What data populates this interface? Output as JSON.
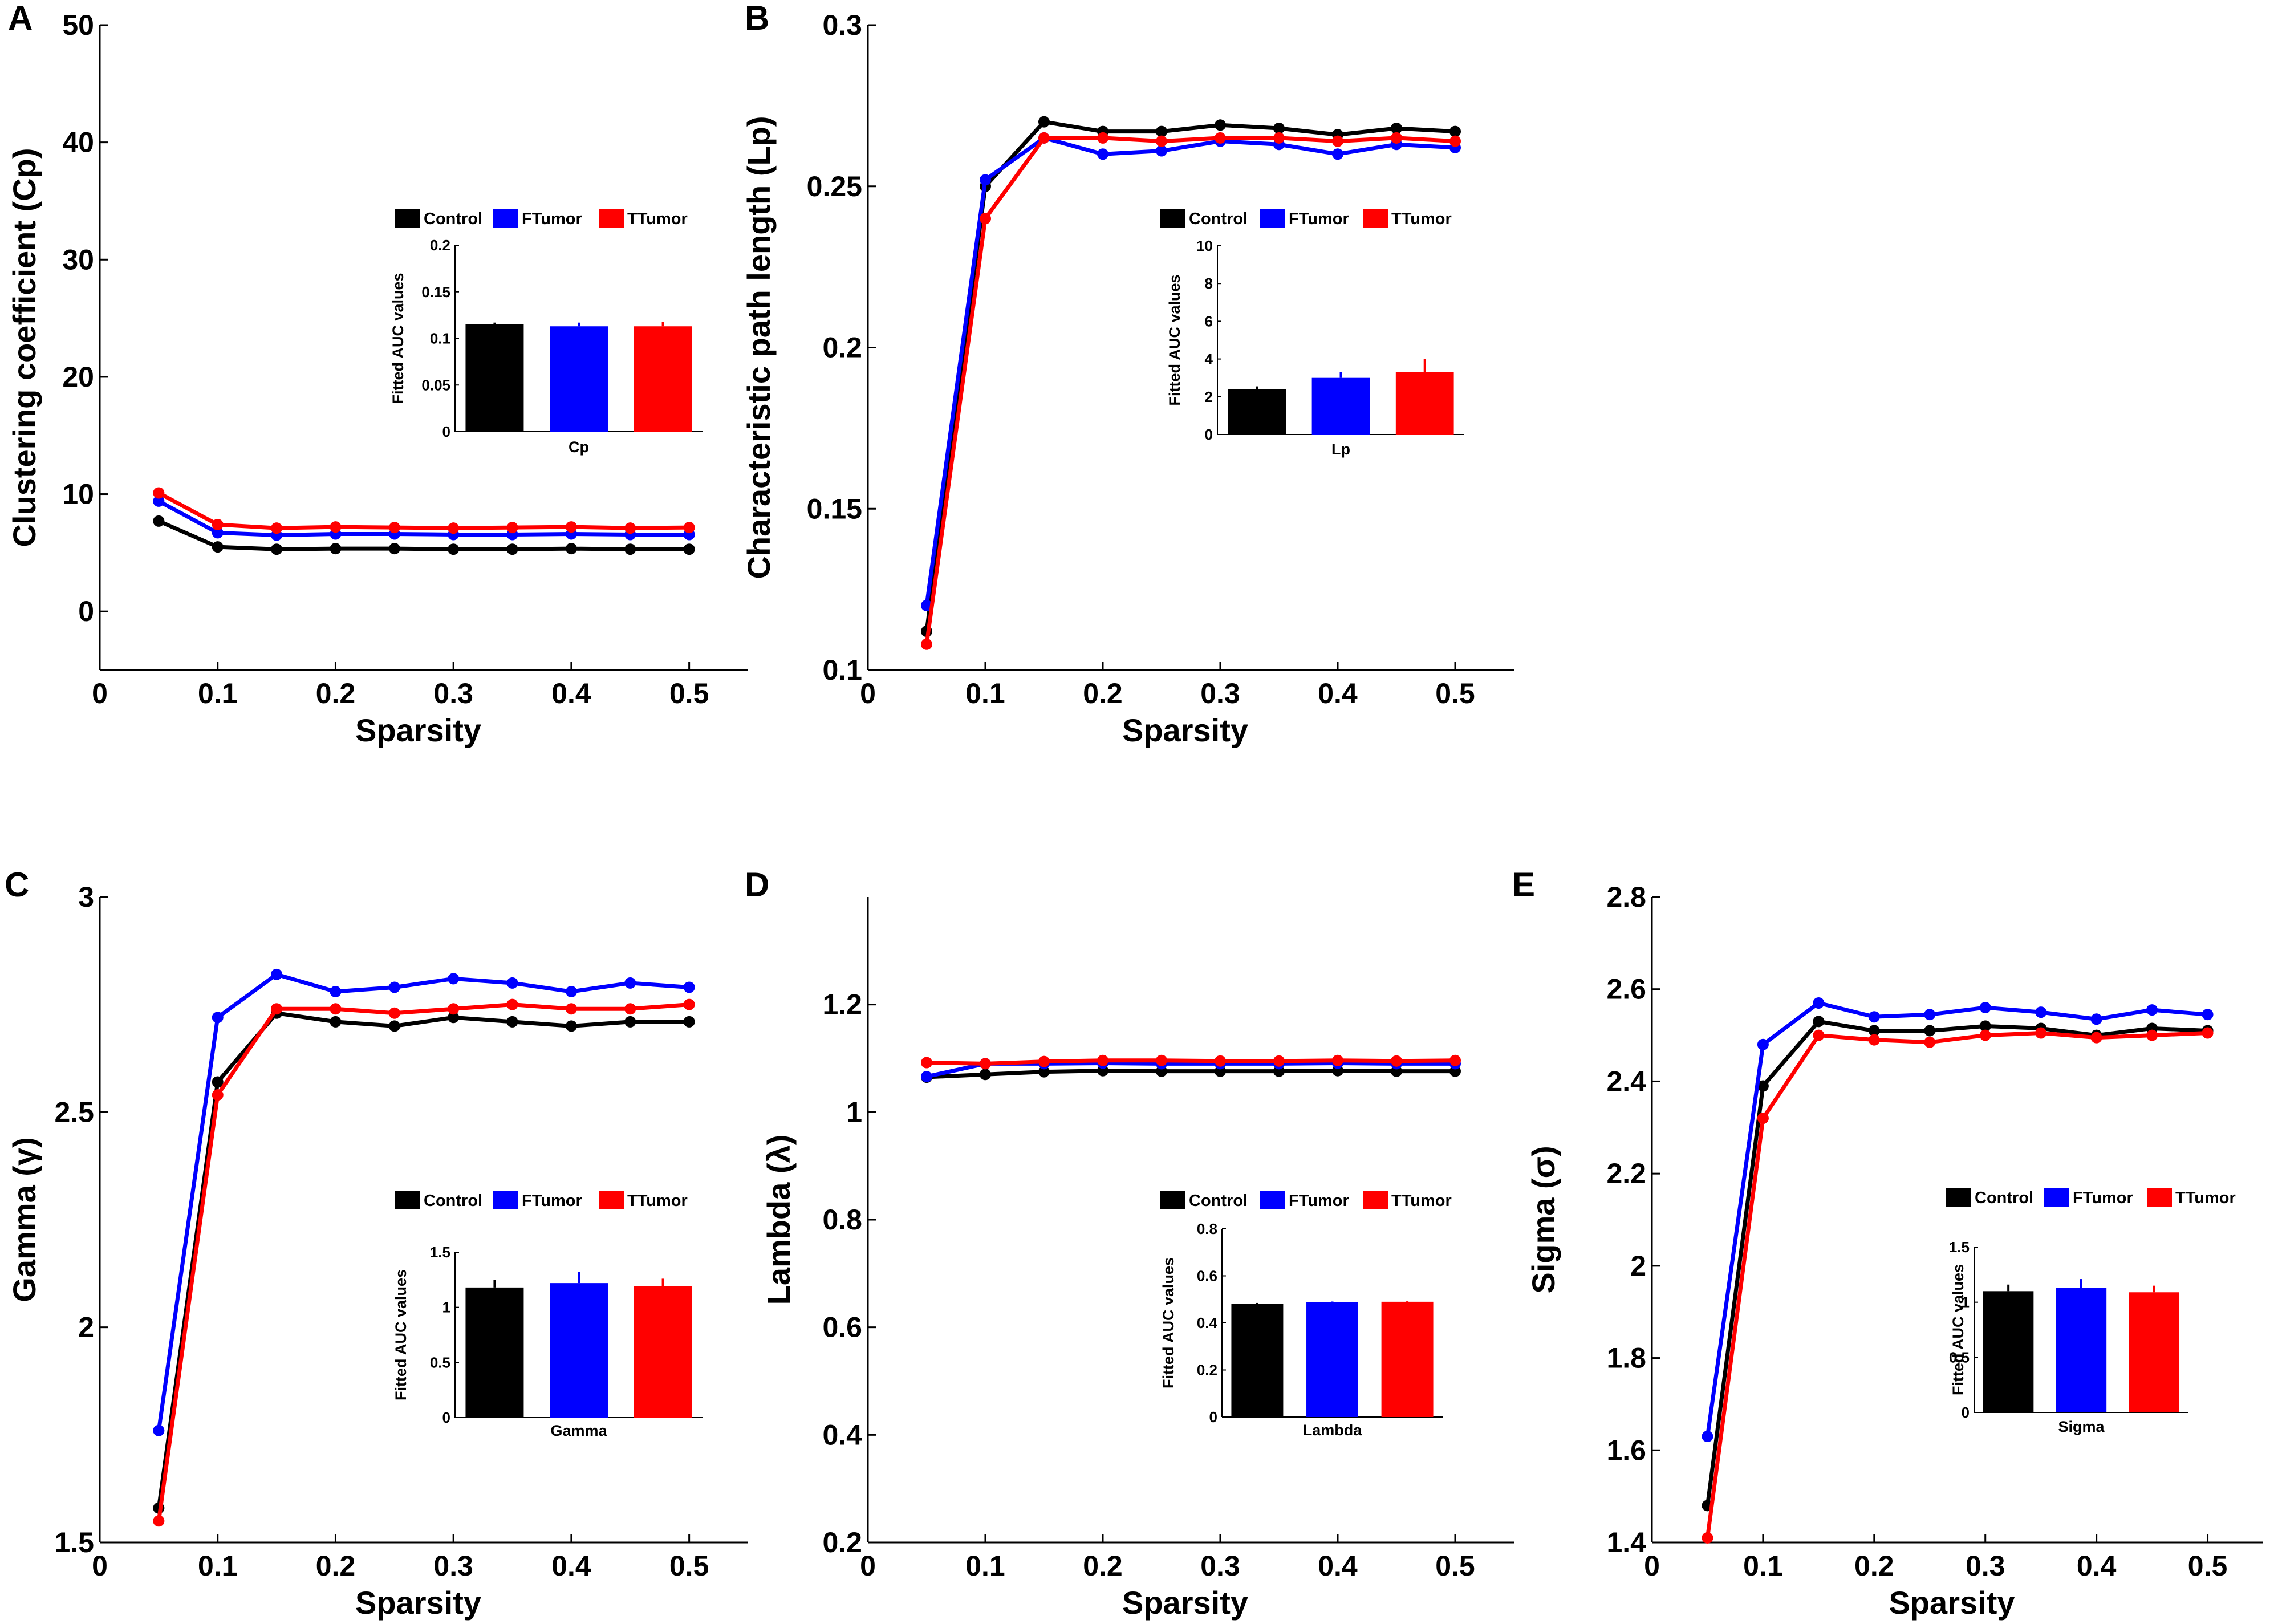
{
  "figure": {
    "description_title": ""
  },
  "colors": {
    "Control": "#000000",
    "FTumor": "#0000ff",
    "TTumor": "#ff0000"
  },
  "legend": [
    "Control",
    "FTumor",
    "TTumor"
  ],
  "chart_data": [
    {
      "panel": "A",
      "type": "line",
      "xlabel": "Sparsity",
      "ylabel": "Clustering coefficient (Cp)",
      "xlim": [
        0,
        0.55
      ],
      "ylim": [
        -5,
        50
      ],
      "xticks": [
        "0",
        "0.1",
        "0.2",
        "0.3",
        "0.4",
        "0.5"
      ],
      "yticks": [
        "0",
        "10",
        "20",
        "30",
        "40",
        "50"
      ],
      "x": [
        0.05,
        0.1,
        0.15,
        0.2,
        0.25,
        0.3,
        0.35,
        0.4,
        0.45,
        0.5
      ],
      "series": [
        {
          "name": "Control",
          "values": [
            7.7,
            5.5,
            5.3,
            5.35,
            5.35,
            5.3,
            5.3,
            5.35,
            5.3,
            5.3
          ]
        },
        {
          "name": "FTumor",
          "values": [
            9.4,
            6.7,
            6.5,
            6.6,
            6.6,
            6.55,
            6.55,
            6.6,
            6.55,
            6.55
          ]
        },
        {
          "name": "TTumor",
          "values": [
            10.1,
            7.4,
            7.1,
            7.2,
            7.15,
            7.1,
            7.15,
            7.2,
            7.1,
            7.15
          ]
        }
      ],
      "inset": {
        "ylabel": "Fitted AUC values",
        "xlabel": "Cp",
        "ylim": [
          0,
          0.2
        ],
        "yticks": [
          "0",
          "0.05",
          "0.1",
          "0.15",
          "0.2"
        ],
        "bars": [
          {
            "name": "Control",
            "value": 0.115,
            "err": 0.002
          },
          {
            "name": "FTumor",
            "value": 0.113,
            "err": 0.004
          },
          {
            "name": "TTumor",
            "value": 0.113,
            "err": 0.005
          }
        ]
      }
    },
    {
      "panel": "B",
      "type": "line",
      "xlabel": "Sparsity",
      "ylabel": "Characteristic path length (Lp)",
      "xlim": [
        0,
        0.55
      ],
      "ylim": [
        0.1,
        0.3
      ],
      "xticks": [
        "0",
        "0.1",
        "0.2",
        "0.3",
        "0.4",
        "0.5"
      ],
      "yticks": [
        "0.1",
        "0.15",
        "0.2",
        "0.25",
        "0.3"
      ],
      "x": [
        0.05,
        0.1,
        0.15,
        0.2,
        0.25,
        0.3,
        0.35,
        0.4,
        0.45,
        0.5
      ],
      "series": [
        {
          "name": "Control",
          "values": [
            0.112,
            0.25,
            0.27,
            0.267,
            0.267,
            0.269,
            0.268,
            0.266,
            0.268,
            0.267
          ]
        },
        {
          "name": "FTumor",
          "values": [
            0.12,
            0.252,
            0.265,
            0.26,
            0.261,
            0.264,
            0.263,
            0.26,
            0.263,
            0.262
          ]
        },
        {
          "name": "TTumor",
          "values": [
            0.108,
            0.24,
            0.265,
            0.265,
            0.264,
            0.265,
            0.265,
            0.264,
            0.265,
            0.264
          ]
        }
      ],
      "inset": {
        "ylabel": "Fitted AUC values",
        "xlabel": "Lp",
        "ylim": [
          0,
          10
        ],
        "yticks": [
          "0",
          "2",
          "4",
          "6",
          "8",
          "10"
        ],
        "bars": [
          {
            "name": "Control",
            "value": 2.4,
            "err": 0.15
          },
          {
            "name": "FTumor",
            "value": 3.0,
            "err": 0.3
          },
          {
            "name": "TTumor",
            "value": 3.3,
            "err": 0.7
          }
        ]
      }
    },
    {
      "panel": "C",
      "type": "line",
      "xlabel": "Sparsity",
      "ylabel": "Gamma (γ)",
      "xlim": [
        0,
        0.55
      ],
      "ylim": [
        1.5,
        3
      ],
      "xticks": [
        "0",
        "0.1",
        "0.2",
        "0.3",
        "0.4",
        "0.5"
      ],
      "yticks": [
        "1.5",
        "2",
        "2.5",
        "3"
      ],
      "x": [
        0.05,
        0.1,
        0.15,
        0.2,
        0.25,
        0.3,
        0.35,
        0.4,
        0.45,
        0.5
      ],
      "series": [
        {
          "name": "Control",
          "values": [
            1.58,
            2.57,
            2.73,
            2.71,
            2.7,
            2.72,
            2.71,
            2.7,
            2.71,
            2.71
          ]
        },
        {
          "name": "FTumor",
          "values": [
            1.76,
            2.72,
            2.82,
            2.78,
            2.79,
            2.81,
            2.8,
            2.78,
            2.8,
            2.79
          ]
        },
        {
          "name": "TTumor",
          "values": [
            1.55,
            2.54,
            2.74,
            2.74,
            2.73,
            2.74,
            2.75,
            2.74,
            2.74,
            2.75
          ]
        }
      ],
      "inset": {
        "ylabel": "Fitted AUC values",
        "xlabel": "Gamma",
        "ylim": [
          0,
          1.5
        ],
        "yticks": [
          "0",
          "0.5",
          "1",
          "1.5"
        ],
        "bars": [
          {
            "name": "Control",
            "value": 1.18,
            "err": 0.07
          },
          {
            "name": "FTumor",
            "value": 1.22,
            "err": 0.1
          },
          {
            "name": "TTumor",
            "value": 1.19,
            "err": 0.07
          }
        ]
      }
    },
    {
      "panel": "D",
      "type": "line",
      "xlabel": "Sparsity",
      "ylabel": "Lambda (λ)",
      "xlim": [
        0,
        0.55
      ],
      "ylim": [
        0.2,
        1.4
      ],
      "xticks": [
        "0",
        "0.1",
        "0.2",
        "0.3",
        "0.4",
        "0.5"
      ],
      "yticks": [
        "0.2",
        "0.4",
        "0.6",
        "0.8",
        "1",
        "1.2"
      ],
      "x": [
        0.05,
        0.1,
        0.15,
        0.2,
        0.25,
        0.3,
        0.35,
        0.4,
        0.45,
        0.5
      ],
      "series": [
        {
          "name": "Control",
          "values": [
            1.065,
            1.07,
            1.075,
            1.077,
            1.076,
            1.076,
            1.076,
            1.077,
            1.076,
            1.076
          ]
        },
        {
          "name": "FTumor",
          "values": [
            1.066,
            1.09,
            1.09,
            1.091,
            1.09,
            1.09,
            1.09,
            1.091,
            1.09,
            1.09
          ]
        },
        {
          "name": "TTumor",
          "values": [
            1.092,
            1.09,
            1.094,
            1.096,
            1.096,
            1.095,
            1.095,
            1.096,
            1.095,
            1.096
          ]
        }
      ],
      "inset": {
        "ylabel": "Fitted AUC values",
        "xlabel": "Lambda",
        "ylim": [
          0,
          0.8
        ],
        "yticks": [
          "0",
          "0.2",
          "0.4",
          "0.6",
          "0.8"
        ],
        "bars": [
          {
            "name": "Control",
            "value": 0.482,
            "err": 0.003
          },
          {
            "name": "FTumor",
            "value": 0.488,
            "err": 0.003
          },
          {
            "name": "TTumor",
            "value": 0.49,
            "err": 0.003
          }
        ]
      }
    },
    {
      "panel": "E",
      "type": "line",
      "xlabel": "Sparsity",
      "ylabel": "Sigma (σ)",
      "xlim": [
        0,
        0.55
      ],
      "ylim": [
        1.4,
        2.8
      ],
      "xticks": [
        "0",
        "0.1",
        "0.2",
        "0.3",
        "0.4",
        "0.5"
      ],
      "yticks": [
        "1.4",
        "1.6",
        "1.8",
        "2",
        "2.2",
        "2.4",
        "2.6",
        "2.8"
      ],
      "x": [
        0.05,
        0.1,
        0.15,
        0.2,
        0.25,
        0.3,
        0.35,
        0.4,
        0.45,
        0.5
      ],
      "series": [
        {
          "name": "Control",
          "values": [
            1.48,
            2.39,
            2.53,
            2.51,
            2.51,
            2.52,
            2.515,
            2.5,
            2.515,
            2.51
          ]
        },
        {
          "name": "FTumor",
          "values": [
            1.63,
            2.48,
            2.57,
            2.54,
            2.545,
            2.56,
            2.55,
            2.535,
            2.555,
            2.545
          ]
        },
        {
          "name": "TTumor",
          "values": [
            1.41,
            2.32,
            2.5,
            2.49,
            2.485,
            2.5,
            2.505,
            2.495,
            2.5,
            2.505
          ]
        }
      ],
      "inset": {
        "ylabel": "Fitted AUC values",
        "xlabel": "Sigma",
        "ylim": [
          0,
          1.5
        ],
        "yticks": [
          "0",
          "0.5",
          "1",
          "1.5"
        ],
        "bars": [
          {
            "name": "Control",
            "value": 1.1,
            "err": 0.06
          },
          {
            "name": "FTumor",
            "value": 1.13,
            "err": 0.08
          },
          {
            "name": "TTumor",
            "value": 1.09,
            "err": 0.06
          }
        ]
      }
    }
  ]
}
